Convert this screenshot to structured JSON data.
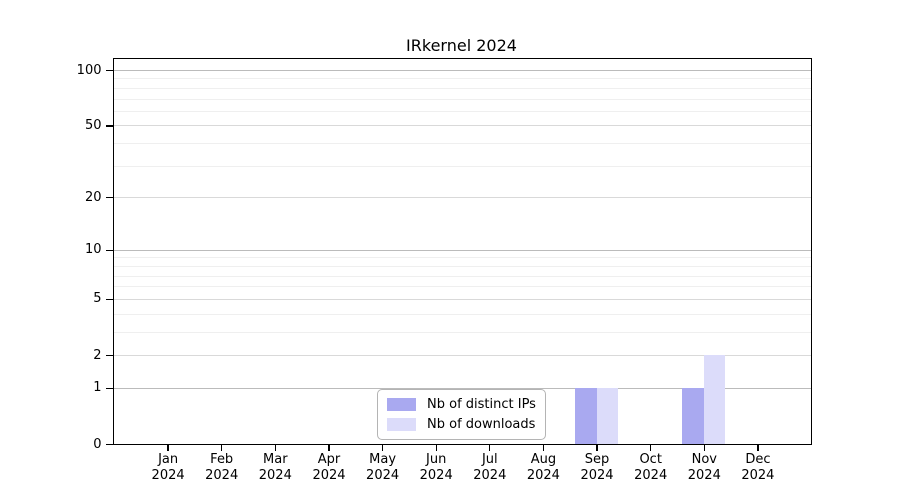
{
  "title": "IRkernel 2024",
  "colors": {
    "ips_bar": "#a9a9f0",
    "downloads_bar": "#dcdcfa",
    "grid_major": "#bbbbbb",
    "grid_mid": "#d9d9d9",
    "grid_minor": "#efefef",
    "axis": "#000000",
    "legend_border": "#b4b4b4"
  },
  "legend": {
    "items": [
      {
        "label": "Nb of distinct IPs",
        "color_key": "ips_bar"
      },
      {
        "label": "Nb of downloads",
        "color_key": "downloads_bar"
      }
    ]
  },
  "y_axis": {
    "tick_values": [
      0,
      1,
      2,
      5,
      10,
      20,
      50,
      100
    ],
    "tick_labels": [
      "0",
      "1",
      "2",
      "5",
      "10",
      "20",
      "50",
      "100"
    ],
    "major_gridlines": [
      1,
      10,
      100
    ],
    "mid_gridlines": [
      2,
      5,
      20,
      50
    ],
    "minor_gridlines": [
      3,
      4,
      6,
      7,
      8,
      9,
      30,
      40,
      60,
      70,
      80,
      90
    ],
    "scale": "log1p",
    "max": 100
  },
  "x_axis": {
    "months": [
      "Jan",
      "Feb",
      "Mar",
      "Apr",
      "May",
      "Jun",
      "Jul",
      "Aug",
      "Sep",
      "Oct",
      "Nov",
      "Dec"
    ],
    "year": "2024"
  },
  "chart_data": {
    "type": "bar",
    "title": "IRkernel 2024",
    "xlabel": "",
    "ylabel": "",
    "categories": [
      "Jan 2024",
      "Feb 2024",
      "Mar 2024",
      "Apr 2024",
      "May 2024",
      "Jun 2024",
      "Jul 2024",
      "Aug 2024",
      "Sep 2024",
      "Oct 2024",
      "Nov 2024",
      "Dec 2024"
    ],
    "series": [
      {
        "name": "Nb of distinct IPs",
        "values": [
          0,
          0,
          0,
          0,
          0,
          0,
          0,
          0,
          1,
          0,
          1,
          0
        ]
      },
      {
        "name": "Nb of downloads",
        "values": [
          0,
          0,
          0,
          0,
          0,
          0,
          0,
          0,
          1,
          0,
          2,
          0
        ]
      }
    ],
    "yscale": "log1p",
    "ylim": [
      0,
      100
    ],
    "yticks": [
      0,
      1,
      2,
      5,
      10,
      20,
      50,
      100
    ],
    "grid": "horizontal, log minor + major",
    "legend_position": "lower center inside plot"
  }
}
